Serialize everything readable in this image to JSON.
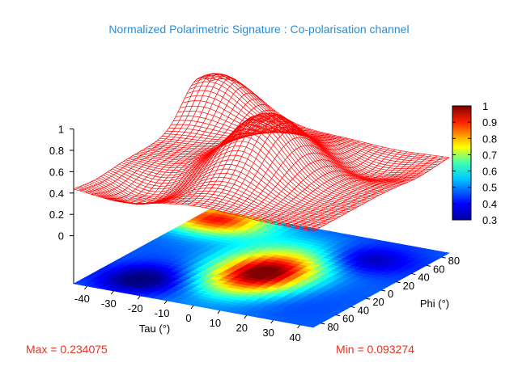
{
  "page_title": "Normalized Polarimetric Signature : Co-polarisation channel",
  "max_label": "Max = 0.234075",
  "min_label": "Min = 0.093274",
  "chart_data": {
    "type": "surface3d",
    "title": "Normalized Polarimetric Signature : Co-polarisation channel",
    "xlabel": "Tau (°)",
    "ylabel": "Phi (°)",
    "x_ticks": [
      -40,
      -30,
      -20,
      -10,
      0,
      10,
      20,
      30,
      40
    ],
    "y_ticks": [
      -80,
      -60,
      -40,
      -20,
      0,
      20,
      40,
      60,
      80
    ],
    "y_tick_labels": [
      "80",
      "60",
      "40",
      "20",
      "0",
      "20",
      "40",
      "60",
      "80"
    ],
    "z_ticks": [
      0,
      0.2,
      0.4,
      0.6,
      0.8,
      1
    ],
    "z_tick_labels": [
      "0",
      "0.2",
      "0.4",
      "0.6",
      "0.8",
      "1"
    ],
    "xlim": [
      -45,
      45
    ],
    "ylim": [
      -90,
      90
    ],
    "zlim": [
      -0.45,
      1
    ],
    "surface_color": "#ff0000",
    "colorbar": {
      "ticks": [
        0.3,
        0.4,
        0.5,
        0.6,
        0.7,
        0.8,
        0.9,
        1
      ],
      "tick_labels": [
        "0.3",
        "0.4",
        "0.5",
        "0.6",
        "0.7",
        "0.8",
        "0.9",
        "1"
      ],
      "range": [
        0.3,
        1
      ],
      "colormap": "jet"
    },
    "max": 0.234075,
    "min": 0.093274
  }
}
